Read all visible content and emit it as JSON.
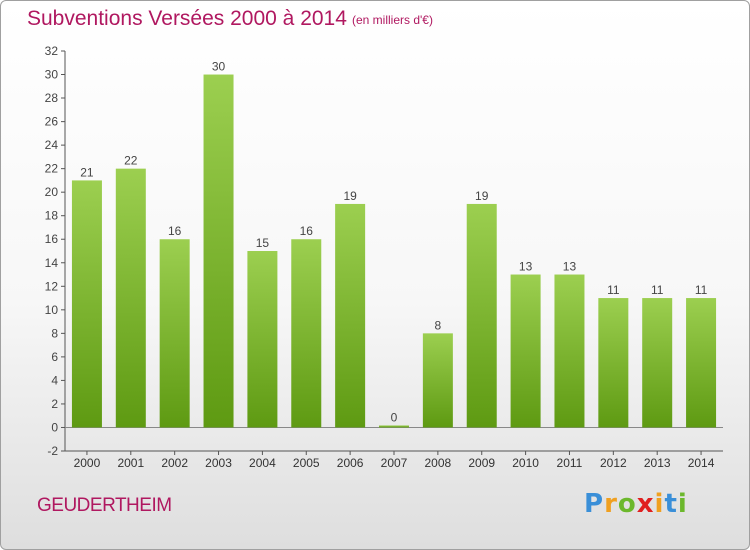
{
  "title": "Subventions Versées 2000 à 2014",
  "subtitle": "(en milliers d'€)",
  "commune": "GEUDERTHEIM",
  "logo": {
    "letters": [
      "P",
      "r",
      "o",
      "x",
      "i",
      "t",
      "i"
    ],
    "colors": [
      "#3a8fd8",
      "#f0a020",
      "#6cb82c",
      "#e02020",
      "#f0a020",
      "#3a8fd8",
      "#6cb82c"
    ]
  },
  "chart_data": {
    "type": "bar",
    "categories": [
      "2000",
      "2001",
      "2002",
      "2003",
      "2004",
      "2005",
      "2006",
      "2007",
      "2008",
      "2009",
      "2010",
      "2011",
      "2012",
      "2013",
      "2014"
    ],
    "values": [
      21,
      22,
      16,
      30,
      15,
      16,
      19,
      0,
      8,
      19,
      13,
      13,
      11,
      11,
      11
    ],
    "data_labels": [
      "21",
      "22",
      "16",
      "30",
      "15",
      "16",
      "19",
      "0",
      "8",
      "19",
      "13",
      "13",
      "11",
      "11",
      "11"
    ],
    "ylim": [
      -2,
      32
    ],
    "yticks": [
      -2,
      0,
      2,
      4,
      6,
      8,
      10,
      12,
      14,
      16,
      18,
      20,
      22,
      24,
      26,
      28,
      30,
      32
    ],
    "grid": false,
    "colors": {
      "bar_top": "#9ccf50",
      "bar_bottom": "#5e9a12",
      "label": "#444444",
      "axis": "#555555"
    }
  }
}
